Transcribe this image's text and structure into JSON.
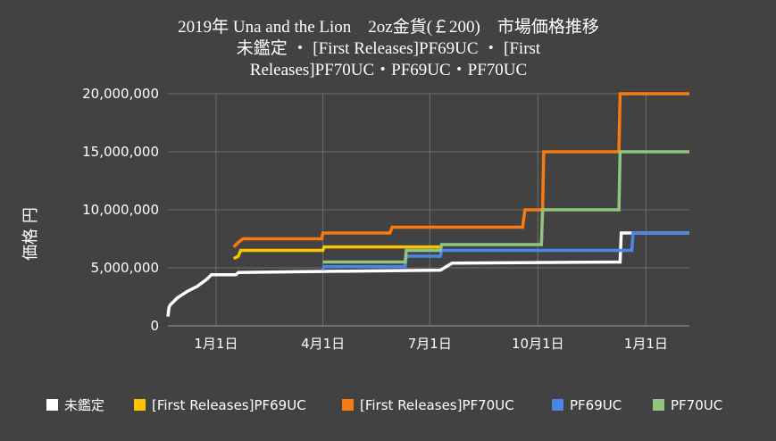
{
  "chart_data": {
    "type": "line",
    "title_lines": [
      "2019年 Una and the Lion　2oz金貨(￡200)　市場価格推移",
      "未鑑定 ・ [First Releases]PF69UC ・ [First",
      "Releases]PF70UC・PF69UC・PF70UC"
    ],
    "xlabel": "",
    "ylabel": "価格 円",
    "ylim": [
      0,
      20000000
    ],
    "xlim": [
      "2019-11-21",
      "2021-02-07"
    ],
    "grid": true,
    "legend_position": "bottom",
    "y_ticks": [
      {
        "value": 0,
        "label": "0"
      },
      {
        "value": 5000000,
        "label": "5,000,000"
      },
      {
        "value": 10000000,
        "label": "10,000,000"
      },
      {
        "value": 15000000,
        "label": "15,000,000"
      },
      {
        "value": 20000000,
        "label": "20,000,000"
      }
    ],
    "x_ticks": [
      {
        "value": "2020-01-01",
        "label": "1月1日"
      },
      {
        "value": "2020-04-01",
        "label": "4月1日"
      },
      {
        "value": "2020-07-01",
        "label": "7月1日"
      },
      {
        "value": "2020-10-01",
        "label": "10月1日"
      },
      {
        "value": "2021-01-01",
        "label": "1月1日"
      }
    ],
    "series": [
      {
        "name": "未鑑定",
        "color": "#ffffff",
        "points": [
          [
            "2019-11-21",
            800000
          ],
          [
            "2019-11-22",
            1600000
          ],
          [
            "2019-11-23",
            1800000
          ],
          [
            "2019-11-25",
            2000000
          ],
          [
            "2019-11-27",
            2200000
          ],
          [
            "2019-11-29",
            2400000
          ],
          [
            "2019-12-02",
            2600000
          ],
          [
            "2019-12-05",
            2800000
          ],
          [
            "2019-12-08",
            3000000
          ],
          [
            "2019-12-12",
            3200000
          ],
          [
            "2019-12-16",
            3400000
          ],
          [
            "2019-12-20",
            3700000
          ],
          [
            "2019-12-24",
            4000000
          ],
          [
            "2019-12-28",
            4400000
          ],
          [
            "2020-01-18",
            4400000
          ],
          [
            "2020-01-20",
            4600000
          ],
          [
            "2020-04-10",
            4700000
          ],
          [
            "2020-07-10",
            4800000
          ],
          [
            "2020-07-20",
            5400000
          ],
          [
            "2020-12-10",
            5500000
          ],
          [
            "2020-12-11",
            8000000
          ],
          [
            "2021-02-07",
            8000000
          ]
        ]
      },
      {
        "name": "[First Releases]PF69UC",
        "color": "#f9c400",
        "points": [
          [
            "2020-01-16",
            5800000
          ],
          [
            "2020-01-20",
            6000000
          ],
          [
            "2020-01-22",
            6500000
          ],
          [
            "2020-04-01",
            6500000
          ],
          [
            "2020-04-02",
            6800000
          ],
          [
            "2020-07-10",
            6800000
          ]
        ]
      },
      {
        "name": "[First Releases]PF70UC",
        "color": "#f97a0e",
        "points": [
          [
            "2020-01-16",
            6800000
          ],
          [
            "2020-01-20",
            7200000
          ],
          [
            "2020-01-24",
            7500000
          ],
          [
            "2020-03-31",
            7500000
          ],
          [
            "2020-04-01",
            8000000
          ],
          [
            "2020-05-28",
            8000000
          ],
          [
            "2020-05-30",
            8500000
          ],
          [
            "2020-09-18",
            8500000
          ],
          [
            "2020-09-20",
            10000000
          ],
          [
            "2020-10-05",
            10000000
          ],
          [
            "2020-10-06",
            15000000
          ],
          [
            "2020-12-09",
            15000000
          ],
          [
            "2020-12-10",
            20000000
          ],
          [
            "2021-02-07",
            20000000
          ]
        ]
      },
      {
        "name": "PF69UC",
        "color": "#4a86e8",
        "points": [
          [
            "2020-04-01",
            4800000
          ],
          [
            "2020-04-02",
            5100000
          ],
          [
            "2020-06-10",
            5100000
          ],
          [
            "2020-06-11",
            6000000
          ],
          [
            "2020-07-10",
            6000000
          ],
          [
            "2020-07-11",
            6500000
          ],
          [
            "2020-12-20",
            6500000
          ],
          [
            "2020-12-21",
            8000000
          ],
          [
            "2021-02-07",
            8000000
          ]
        ]
      },
      {
        "name": "PF70UC",
        "color": "#93c47d",
        "points": [
          [
            "2020-04-01",
            5500000
          ],
          [
            "2020-06-10",
            5500000
          ],
          [
            "2020-06-11",
            6500000
          ],
          [
            "2020-07-10",
            6500000
          ],
          [
            "2020-07-11",
            7000000
          ],
          [
            "2020-10-04",
            7000000
          ],
          [
            "2020-10-05",
            10000000
          ],
          [
            "2020-12-09",
            10000000
          ],
          [
            "2020-12-10",
            15000000
          ],
          [
            "2021-02-07",
            15000000
          ]
        ]
      }
    ]
  }
}
